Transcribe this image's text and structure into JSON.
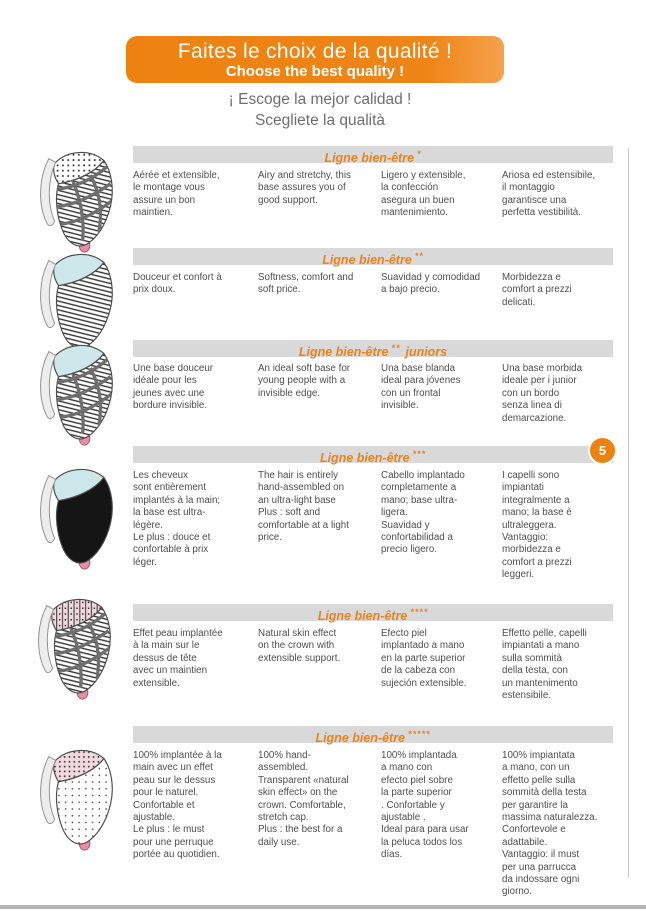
{
  "colors": {
    "accent_orange": "#ee8211",
    "header_orange": "#e8831f",
    "bar_gray": "#d9d9d9",
    "body_text": "#4e4e4e",
    "crown_blue": "#cde7ea",
    "tip_pink": "#ec8ca2"
  },
  "banner": {
    "title_fr": "Faites le choix de la qualité !",
    "title_en": "Choose the best quality !"
  },
  "subtitles": {
    "es": "¡ Escoge la mejor calidad !",
    "it": "Scegliete la qualità"
  },
  "page_number": "5",
  "illustrations": [
    "wig-cap-dotted-mesh-ribbed-illustration",
    "wig-cap-blue-crown-ribbed-illustration",
    "wig-cap-blue-crown-ribbed-banded-illustration",
    "wig-cap-blue-crown-black-base-illustration",
    "wig-cap-pink-striped-crown-ribbed-illustration",
    "wig-cap-pink-dotted-skin-effect-illustration"
  ],
  "sections": [
    {
      "header": "Ligne bien-être",
      "stars": "*",
      "suffix": "",
      "fr": "Aérée et extensible,\nle montage vous\nassure un bon\nmaintien.",
      "en": "Airy and stretchy, this\nbase assures you of\ngood support.",
      "es": "Ligero y extensible,\nla confección\nasegura un buen\nmantenimiento.",
      "it": "Ariosa ed estensibile,\nil montaggio\ngarantisce una\nperfetta vestibilità."
    },
    {
      "header": "Ligne bien-être",
      "stars": "**",
      "suffix": "",
      "fr": "Douceur et confort à\nprix doux.",
      "en": "Softness, comfort and\nsoft price.",
      "es": "Suavidad y comodidad\na bajo precio.",
      "it": "Morbidezza e\ncomfort a prezzi\ndelicati."
    },
    {
      "header": "Ligne bien-être",
      "stars": "**",
      "suffix": "juniors",
      "fr": "Une base douceur\nidéale pour les\njeunes avec une\nbordure invisible.",
      "en": "An ideal soft base for\nyoung people with a\ninvisible edge.",
      "es": "Una base blanda\nideal para jóvenes\ncon un frontal\ninvisible.",
      "it": "Una base morbida\nideale per i junior\ncon un bordo\nsenza linea di\ndemarcazione."
    },
    {
      "header": "Ligne bien-être",
      "stars": "***",
      "suffix": "",
      "fr": "Les cheveux\nsont entièrement\nimplantés à la main;\nla base est ultra-\nlégère.\nLe plus : douce et\nconfortable à prix\nléger.",
      "en": "The hair is entirely\nhand-assembled on\nan ultra-light base\nPlus : soft and\ncomfortable at a light\nprice.",
      "es": "Cabello implantado\ncompletamente a\nmano; base ultra-\nligera.\nSuavidad y\nconfortabilidad a\nprecio ligero.",
      "it": "I capelli sono\nimpiantati\nintegralmente a\nmano; la base è\nultraleggera.\nVantaggio:\nmorbidezza e\ncomfort a prezzi\nleggeri."
    },
    {
      "header": "Ligne bien-être",
      "stars": "****",
      "suffix": "",
      "fr": "Effet peau implantée\nà la main sur le\ndessus de tête\navec un maintien\nextensible.",
      "en": "Natural skin effect\non the crown with\nextensible support.",
      "es": "Efecto piel\nimplantado a mano\nen la parte superior\nde la cabeza con\nsujeción extensible.",
      "it": "Effetto pelle, capelli\nimpiantati a mano\nsulla sommità\ndella testa, con\nun mantenimento\nestensibile."
    },
    {
      "header": "Ligne bien-être",
      "stars": "*****",
      "suffix": "",
      "fr": "100% implantée à la\nmain avec un effet\npeau sur le dessus\npour le naturel.\nConfortable et\najustable.\nLe plus : le must\npour une perruque\nportée au quotidien.",
      "en": "100% hand-\nassembled.\nTransparent «natural\nskin effect» on the\ncrown. Comfortable,\nstretch cap.\nPlus : the best for a\ndaily use.",
      "es": "100% implantada\na mano con\nefecto piel sobre\nla parte superior\n. Confortable y\najustable .\nIdeal para para usar\nla peluca todos los\ndías.",
      "it": "100% impiantata\na mano, con un\neffetto pelle sulla\nsommità della testa\nper garantire la\nmassima naturalezza.\nConfortevole e\nadattabile.\nVantaggio: il must\nper una parrucca\nda indossare ogni\ngiorno."
    }
  ]
}
